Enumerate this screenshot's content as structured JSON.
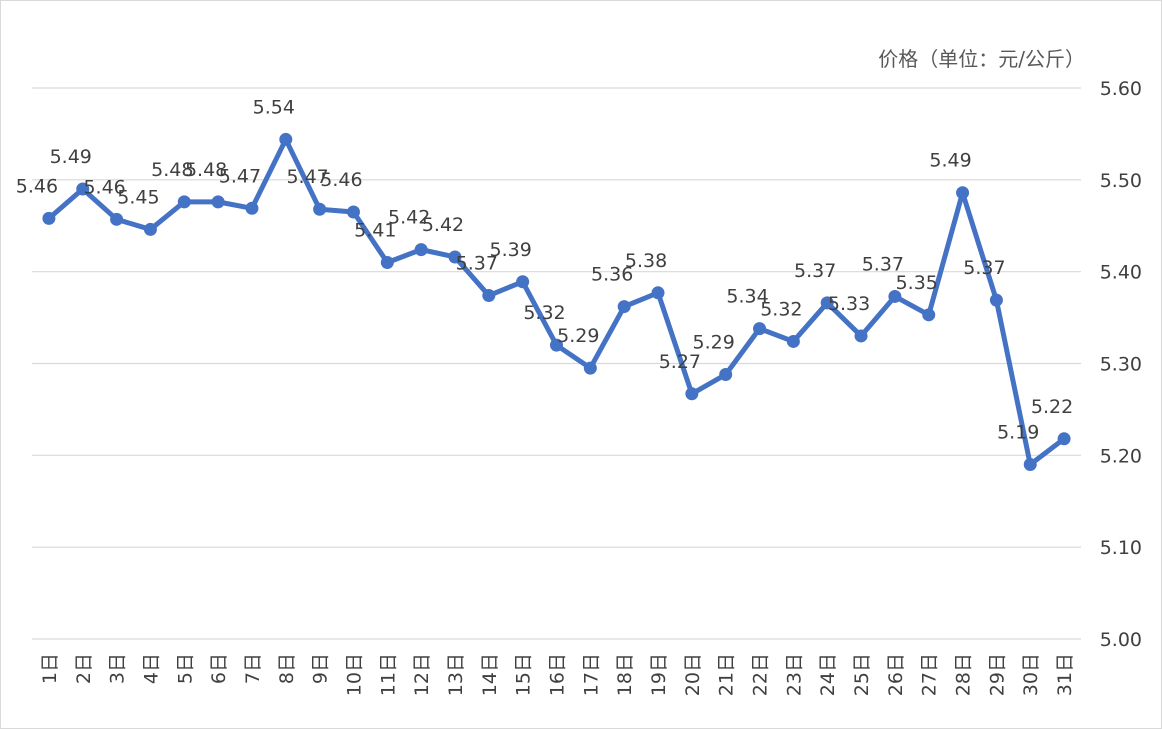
{
  "chart_data": {
    "type": "line",
    "unit_label": "价格（单位：元/公斤）",
    "categories": [
      "1日",
      "2日",
      "3日",
      "4日",
      "5日",
      "6日",
      "7日",
      "8日",
      "9日",
      "10日",
      "11日",
      "12日",
      "13日",
      "14日",
      "15日",
      "16日",
      "17日",
      "18日",
      "19日",
      "20日",
      "21日",
      "22日",
      "23日",
      "24日",
      "25日",
      "26日",
      "27日",
      "28日",
      "29日",
      "30日",
      "31日"
    ],
    "series": [
      {
        "values": [
          5.458,
          5.49,
          5.457,
          5.446,
          5.476,
          5.476,
          5.469,
          5.544,
          5.468,
          5.465,
          5.41,
          5.424,
          5.416,
          5.374,
          5.389,
          5.32,
          5.295,
          5.362,
          5.377,
          5.267,
          5.288,
          5.338,
          5.324,
          5.366,
          5.33,
          5.373,
          5.353,
          5.486,
          5.369,
          5.19,
          5.218
        ],
        "data_labels": [
          "5.46",
          "5.49",
          "5.46",
          "5.45",
          "5.48",
          "5.48",
          "5.47",
          "5.54",
          "5.47",
          "5.46",
          "5.41",
          "5.42",
          "5.42",
          "5.37",
          "5.39",
          "5.32",
          "5.29",
          "5.36",
          "5.38",
          "5.27",
          "5.29",
          "5.34",
          "5.32",
          "5.37",
          "5.33",
          "5.37",
          "5.35",
          "5.49",
          "5.37",
          "5.19",
          "5.22"
        ],
        "color": "#4472c4"
      }
    ],
    "y_ticks": [
      "5.00",
      "5.10",
      "5.20",
      "5.30",
      "5.40",
      "5.50",
      "5.60"
    ],
    "ylim": [
      5.0,
      5.6
    ],
    "y_axis_side": "right",
    "grid": true,
    "legend": "none",
    "gridline_color": "#d9d9d9",
    "label_color": "#404040"
  }
}
